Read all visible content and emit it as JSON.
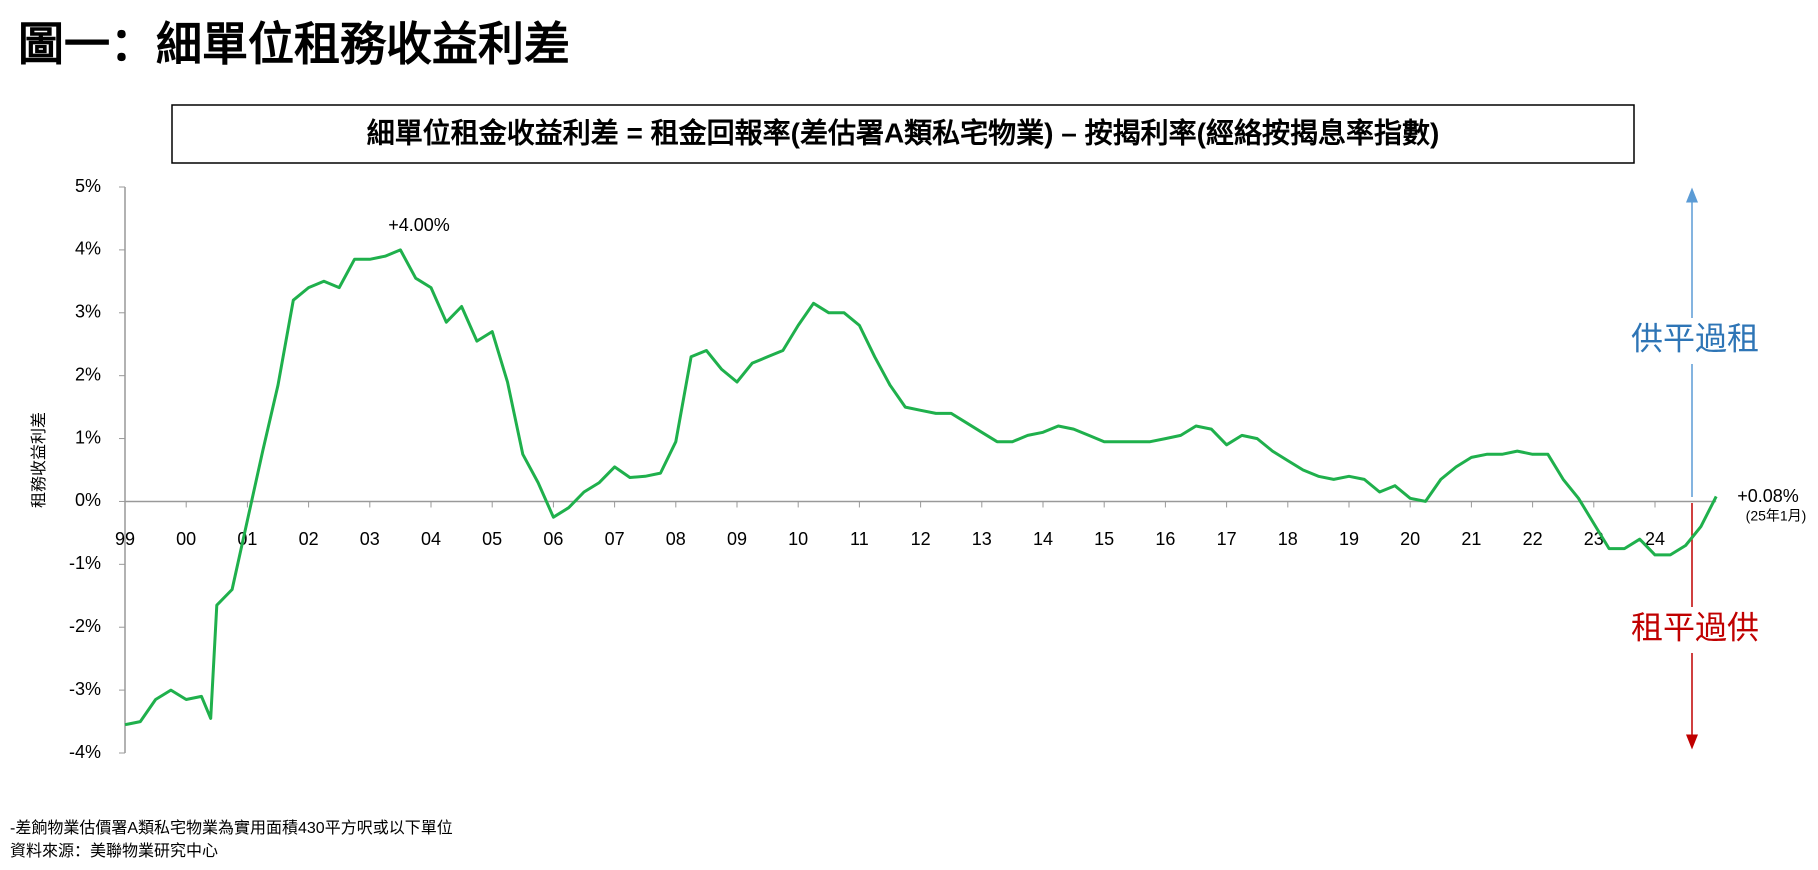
{
  "chart_data": {
    "type": "line",
    "title": "圖一：細單位租務收益利差",
    "subtitle": "細單位租金收益利差 = 租金回報率(差估署A類私宅物業) – 按揭利率(經絡按揭息率指數)",
    "y_label": "租務收益利差",
    "color": "#1fb04c",
    "x": [
      1999.0,
      1999.25,
      1999.5,
      1999.75,
      2000.0,
      2000.25,
      2000.4,
      2000.5,
      2000.75,
      2001.0,
      2001.25,
      2001.5,
      2001.75,
      2002.0,
      2002.25,
      2002.5,
      2002.75,
      2003.0,
      2003.25,
      2003.5,
      2003.75,
      2004.0,
      2004.25,
      2004.5,
      2004.75,
      2005.0,
      2005.25,
      2005.5,
      2005.75,
      2006.0,
      2006.25,
      2006.5,
      2006.75,
      2007.0,
      2007.25,
      2007.5,
      2007.75,
      2008.0,
      2008.25,
      2008.5,
      2008.75,
      2009.0,
      2009.25,
      2009.5,
      2009.75,
      2010.0,
      2010.25,
      2010.5,
      2010.75,
      2011.0,
      2011.25,
      2011.5,
      2011.75,
      2012.0,
      2012.25,
      2012.5,
      2012.75,
      2013.0,
      2013.25,
      2013.5,
      2013.75,
      2014.0,
      2014.25,
      2014.5,
      2014.75,
      2015.0,
      2015.25,
      2015.5,
      2015.75,
      2016.0,
      2016.25,
      2016.5,
      2016.75,
      2017.0,
      2017.25,
      2017.5,
      2017.75,
      2018.0,
      2018.25,
      2018.5,
      2018.75,
      2019.0,
      2019.25,
      2019.5,
      2019.75,
      2020.0,
      2020.25,
      2020.5,
      2020.75,
      2021.0,
      2021.25,
      2021.5,
      2021.75,
      2022.0,
      2022.25,
      2022.5,
      2022.75,
      2023.0,
      2023.25,
      2023.5,
      2023.75,
      2024.0,
      2024.25,
      2024.5,
      2024.75,
      2025.0
    ],
    "values": [
      -3.55,
      -3.5,
      -3.15,
      -3.0,
      -3.15,
      -3.1,
      -3.45,
      -1.65,
      -1.4,
      -0.3,
      0.8,
      1.85,
      3.2,
      3.4,
      3.5,
      3.4,
      3.85,
      3.85,
      3.9,
      4.0,
      3.55,
      3.4,
      2.85,
      3.1,
      2.55,
      2.7,
      1.9,
      0.75,
      0.3,
      -0.25,
      -0.1,
      0.15,
      0.3,
      0.55,
      0.38,
      0.4,
      0.45,
      0.95,
      2.3,
      2.4,
      2.1,
      1.9,
      2.2,
      2.3,
      2.4,
      2.8,
      3.15,
      3.0,
      3.0,
      2.8,
      2.3,
      1.85,
      1.5,
      1.45,
      1.4,
      1.4,
      1.25,
      1.1,
      0.95,
      0.95,
      1.05,
      1.1,
      1.2,
      1.15,
      1.05,
      0.95,
      0.95,
      0.95,
      0.95,
      1.0,
      1.05,
      1.2,
      1.15,
      0.9,
      1.05,
      1.0,
      0.8,
      0.65,
      0.5,
      0.4,
      0.35,
      0.4,
      0.35,
      0.15,
      0.25,
      0.05,
      0.0,
      0.35,
      0.55,
      0.7,
      0.75,
      0.75,
      0.8,
      0.75,
      0.75,
      0.35,
      0.05,
      -0.35,
      -0.75,
      -0.75,
      -0.6,
      -0.85,
      -0.85,
      -0.7,
      -0.4,
      0.08
    ],
    "xlim": [
      1999,
      2025
    ],
    "ylim": [
      -4,
      5
    ],
    "xticks": [
      {
        "value": 1999,
        "label": "99"
      },
      {
        "value": 2000,
        "label": "00"
      },
      {
        "value": 2001,
        "label": "01"
      },
      {
        "value": 2002,
        "label": "02"
      },
      {
        "value": 2003,
        "label": "03"
      },
      {
        "value": 2004,
        "label": "04"
      },
      {
        "value": 2005,
        "label": "05"
      },
      {
        "value": 2006,
        "label": "06"
      },
      {
        "value": 2007,
        "label": "07"
      },
      {
        "value": 2008,
        "label": "08"
      },
      {
        "value": 2009,
        "label": "09"
      },
      {
        "value": 2010,
        "label": "10"
      },
      {
        "value": 2011,
        "label": "11"
      },
      {
        "value": 2012,
        "label": "12"
      },
      {
        "value": 2013,
        "label": "13"
      },
      {
        "value": 2014,
        "label": "14"
      },
      {
        "value": 2015,
        "label": "15"
      },
      {
        "value": 2016,
        "label": "16"
      },
      {
        "value": 2017,
        "label": "17"
      },
      {
        "value": 2018,
        "label": "18"
      },
      {
        "value": 2019,
        "label": "19"
      },
      {
        "value": 2020,
        "label": "20"
      },
      {
        "value": 2021,
        "label": "21"
      },
      {
        "value": 2022,
        "label": "22"
      },
      {
        "value": 2023,
        "label": "23"
      },
      {
        "value": 2024,
        "label": "24"
      }
    ],
    "yticks": [
      {
        "value": 5,
        "label": "5%"
      },
      {
        "value": 4,
        "label": "4%"
      },
      {
        "value": 3,
        "label": "3%"
      },
      {
        "value": 2,
        "label": "2%"
      },
      {
        "value": 1,
        "label": "1%"
      },
      {
        "value": 0,
        "label": "0%"
      },
      {
        "value": -1,
        "label": "-1%"
      },
      {
        "value": -2,
        "label": "-2%"
      },
      {
        "value": -3,
        "label": "-3%"
      },
      {
        "value": -4,
        "label": "-4%"
      }
    ],
    "annotations": [
      "+4.00%",
      "+0.08%",
      "(25年1月)",
      "供平過租",
      "租平過供"
    ],
    "notes": [
      "-差餉物業估價署A類私宅物業為實用面積430平方呎或以下單位",
      "資料來源：美聯物業研究中心"
    ]
  }
}
